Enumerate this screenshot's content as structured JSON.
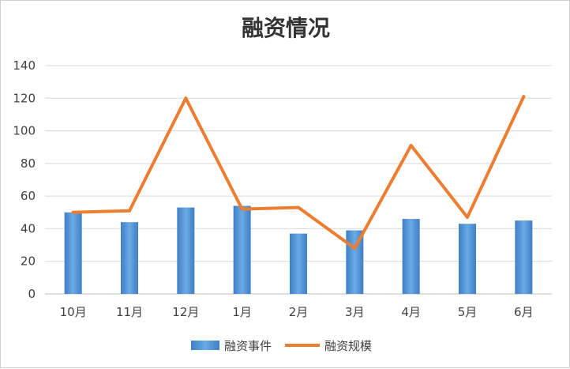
{
  "chart_data": {
    "type": "bar+line",
    "title": "融资情况",
    "categories": [
      "10月",
      "11月",
      "12月",
      "1月",
      "2月",
      "3月",
      "4月",
      "5月",
      "6月"
    ],
    "ylim": [
      0,
      140
    ],
    "yticks": [
      "0",
      "20",
      "40",
      "60",
      "80",
      "100",
      "120",
      "140"
    ],
    "grid": true,
    "legend_position": "bottom",
    "series": [
      {
        "name": "融资事件",
        "kind": "bar",
        "color": "#5b9bd5",
        "values": [
          50,
          44,
          53,
          54,
          37,
          39,
          46,
          43,
          45
        ]
      },
      {
        "name": "融资规模",
        "kind": "line",
        "color": "#ed7d31",
        "values": [
          50,
          51,
          120,
          52,
          53,
          28,
          91,
          47,
          121
        ]
      }
    ]
  }
}
